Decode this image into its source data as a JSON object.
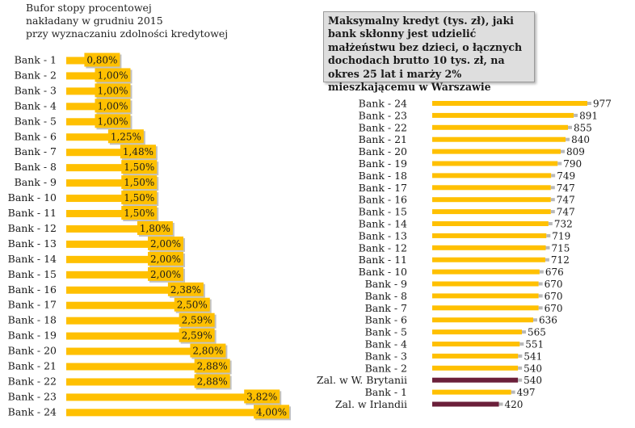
{
  "colors": {
    "bar": "#FFC000",
    "bar_highlight": "#6B1F3A",
    "label_box": "#FFC000",
    "title_box": "#DEDEDE"
  },
  "chart_data": [
    {
      "type": "bar",
      "orientation": "horizontal",
      "title": "Bufor stopy procentowej\nnakładany w grudniu 2015\nprzy wyznaczaniu zdolności kredytowej",
      "categories": [
        "Bank - 1",
        "Bank - 2",
        "Bank - 3",
        "Bank - 4",
        "Bank - 5",
        "Bank - 6",
        "Bank - 7",
        "Bank - 8",
        "Bank - 9",
        "Bank - 10",
        "Bank - 11",
        "Bank - 12",
        "Bank - 13",
        "Bank - 14",
        "Bank - 15",
        "Bank - 16",
        "Bank - 17",
        "Bank - 18",
        "Bank - 19",
        "Bank - 20",
        "Bank - 21",
        "Bank - 22",
        "Bank - 23",
        "Bank - 24"
      ],
      "values": [
        0.8,
        1.0,
        1.0,
        1.0,
        1.0,
        1.25,
        1.48,
        1.5,
        1.5,
        1.5,
        1.5,
        1.8,
        2.0,
        2.0,
        2.0,
        2.38,
        2.5,
        2.59,
        2.59,
        2.8,
        2.88,
        2.88,
        3.82,
        4.0
      ],
      "value_labels": [
        "0,80%",
        "1,00%",
        "1,00%",
        "1,00%",
        "1,00%",
        "1,25%",
        "1,48%",
        "1,50%",
        "1,50%",
        "1,50%",
        "1,50%",
        "1,80%",
        "2,00%",
        "2,00%",
        "2,00%",
        "2,38%",
        "2,50%",
        "2,59%",
        "2,59%",
        "2,80%",
        "2,88%",
        "2,88%",
        "3,82%",
        "4,00%"
      ],
      "unit": "%",
      "xlim": [
        0,
        4.2
      ],
      "grid": false
    },
    {
      "type": "bar",
      "orientation": "horizontal",
      "title": "Maksymalny kredyt (tys. zł), jaki bank skłonny jest udzielić małżeństwu bez dzieci, o łącznych dochodach brutto 10 tys. zł, na okres 25 lat i marży 2% mieszkającemu w Warszawie",
      "categories": [
        "Bank - 24",
        "Bank - 23",
        "Bank - 22",
        "Bank - 21",
        "Bank - 20",
        "Bank - 19",
        "Bank - 18",
        "Bank - 17",
        "Bank - 16",
        "Bank - 15",
        "Bank - 14",
        "Bank - 13",
        "Bank - 12",
        "Bank - 11",
        "Bank - 10",
        "Bank - 9",
        "Bank - 8",
        "Bank - 7",
        "Bank - 6",
        "Bank - 5",
        "Bank - 4",
        "Bank - 3",
        "Bank - 2",
        "Zal. w W. Brytanii",
        "Bank - 1",
        "Zal. w Irlandii"
      ],
      "values": [
        977,
        891,
        855,
        840,
        809,
        790,
        749,
        747,
        747,
        747,
        732,
        719,
        715,
        712,
        676,
        670,
        670,
        670,
        636,
        565,
        551,
        541,
        540,
        540,
        497,
        420
      ],
      "highlighted": [
        "Zal. w W. Brytanii",
        "Zal. w Irlandii"
      ],
      "xlim": [
        0,
        1000
      ],
      "grid": false
    }
  ]
}
